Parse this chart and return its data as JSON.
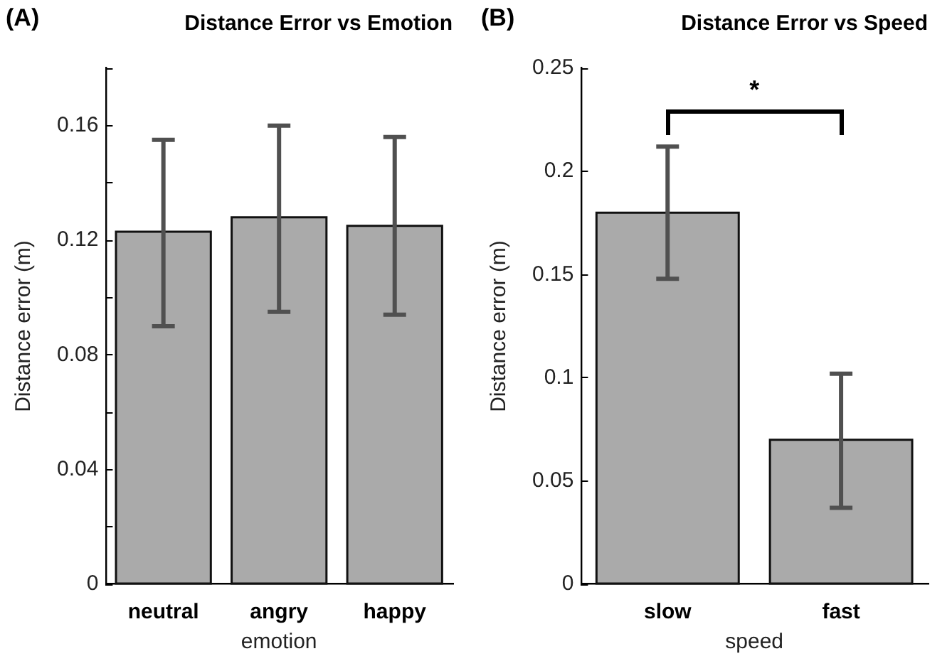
{
  "chart_data": [
    {
      "type": "bar",
      "title": "Distance Error vs Emotion",
      "xlabel": "emotion",
      "ylabel": "Distance error (m)",
      "categories": [
        "neutral",
        "angry",
        "happy"
      ],
      "values": [
        0.123,
        0.128,
        0.125
      ],
      "color": "#aaaaaa",
      "errors": [
        [
          0.09,
          0.155
        ],
        [
          0.095,
          0.16
        ],
        [
          0.094,
          0.156
        ]
      ],
      "ylim": [
        0,
        0.18
      ],
      "yticks": [
        0,
        {
          "value": 0.02,
          "label": null
        },
        0.04,
        {
          "value": 0.06,
          "label": null
        },
        0.08,
        {
          "value": 0.1,
          "label": null
        },
        0.12,
        {
          "value": 0.14,
          "label": null
        },
        0.16,
        {
          "value": 0.18,
          "label": null
        }
      ],
      "grid": false,
      "legend": false,
      "annotations": [
        "(A)"
      ]
    },
    {
      "type": "bar",
      "title": "Distance Error vs Speed",
      "xlabel": "speed",
      "ylabel": "Distance error (m)",
      "categories": [
        "slow",
        "fast"
      ],
      "values": [
        0.18,
        0.07
      ],
      "color": "#aaaaaa",
      "errors": [
        [
          0.148,
          0.212
        ],
        [
          0.037,
          0.102
        ]
      ],
      "ylim": [
        0,
        0.25
      ],
      "yticks": [
        0,
        0.05,
        0.1,
        0.15,
        0.2,
        0.25
      ],
      "grid": false,
      "legend": false,
      "annotations": [
        "(B)",
        "*"
      ]
    }
  ]
}
